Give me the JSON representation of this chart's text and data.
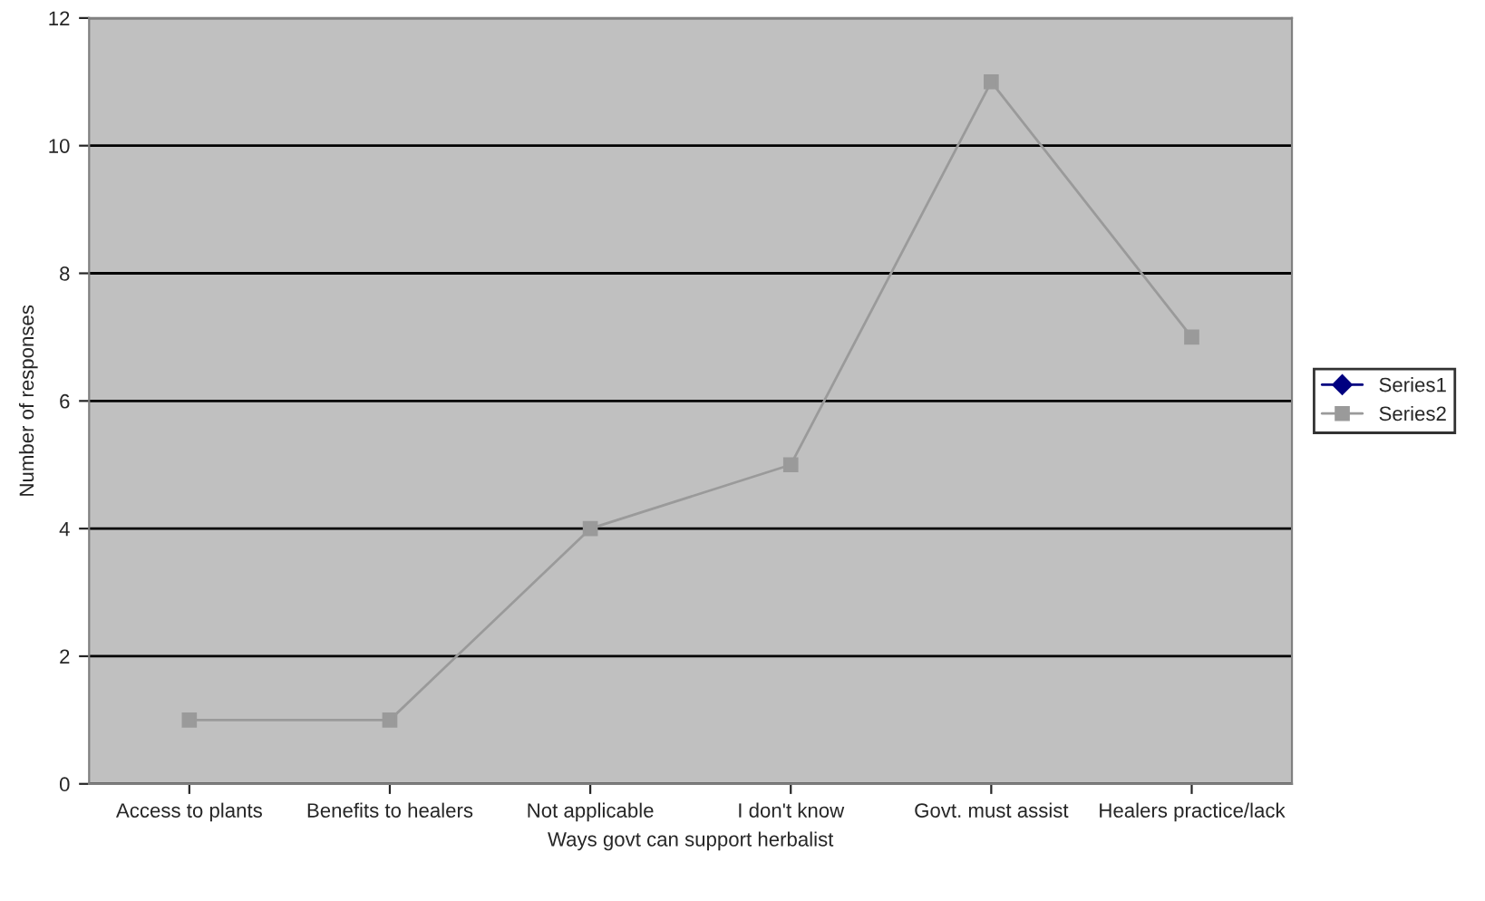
{
  "chart_data": {
    "type": "line",
    "xlabel": "Ways govt can support herbalist",
    "ylabel": "Number of responses",
    "categories": [
      "Access to plants",
      "Benefits to healers",
      "Not applicable",
      "I don't know",
      "Govt. must assist",
      "Healers practice/lack"
    ],
    "series": [
      {
        "name": "Series1",
        "color": "#000080",
        "marker": "diamond",
        "values": [
          null,
          null,
          null,
          null,
          null,
          null
        ]
      },
      {
        "name": "Series2",
        "color": "#9a9a9a",
        "marker": "square",
        "values": [
          1,
          1,
          4,
          5,
          11,
          7
        ]
      }
    ],
    "ylim": [
      0,
      12
    ],
    "yticks": [
      0,
      2,
      4,
      6,
      8,
      10,
      12
    ],
    "grid": "y",
    "legend": "right"
  }
}
